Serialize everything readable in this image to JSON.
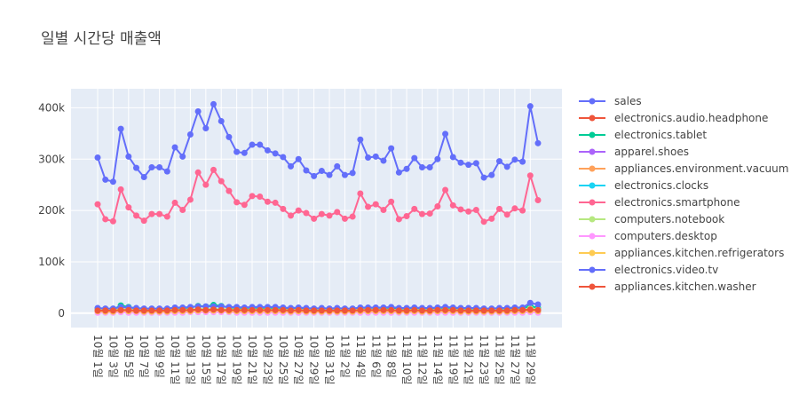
{
  "chart_data": {
    "type": "line",
    "title": "일별 시간당 매출액",
    "xlabel": "",
    "ylabel": "",
    "ylim": [
      -28000,
      437000
    ],
    "y_ticks": [
      0,
      100000,
      200000,
      300000,
      400000
    ],
    "y_tick_labels": [
      "0",
      "100k",
      "200k",
      "300k",
      "400k"
    ],
    "grid": true,
    "legend_position": "right",
    "background_color": "#e5ecf6",
    "x": [
      "10월 1일",
      "10월 2일",
      "10월 3일",
      "10월 4일",
      "10월 5일",
      "10월 6일",
      "10월 7일",
      "10월 8일",
      "10월 9일",
      "10월 10일",
      "10월 11일",
      "10월 12일",
      "10월 13일",
      "10월 14일",
      "10월 15일",
      "10월 16일",
      "10월 17일",
      "10월 18일",
      "10월 19일",
      "10월 20일",
      "10월 21일",
      "10월 22일",
      "10월 23일",
      "10월 24일",
      "10월 25일",
      "10월 26일",
      "10월 27일",
      "10월 28일",
      "10월 29일",
      "10월 30일",
      "10월 31일",
      "11월 1일",
      "11월 2일",
      "11월 3일",
      "11월 4일",
      "11월 5일",
      "11월 6일",
      "11월 7일",
      "11월 8일",
      "11월 9일",
      "11월 10일",
      "11월 11일",
      "11월 12일",
      "11월 13일",
      "11월 14일",
      "11월 15일",
      "11월 19일",
      "11월 20일",
      "11월 21일",
      "11월 22일",
      "11월 23일",
      "11월 24일",
      "11월 25일",
      "11월 26일",
      "11월 27일",
      "11월 28일",
      "11월 29일",
      "11월 30일"
    ],
    "x_tick_labels": [
      "10월 1일",
      "10월 3일",
      "10월 5일",
      "10월 7일",
      "10월 9일",
      "10월 11일",
      "10월 13일",
      "10월 15일",
      "10월 17일",
      "10월 19일",
      "10월 21일",
      "10월 23일",
      "10월 25일",
      "10월 27일",
      "10월 29일",
      "10월 31일",
      "11월 2일",
      "11월 4일",
      "11월 6일",
      "11월 8일",
      "11월 10일",
      "11월 12일",
      "11월 14일",
      "11월 19일",
      "11월 21일",
      "11월 23일",
      "11월 25일",
      "11월 27일",
      "11월 29일"
    ],
    "series": [
      {
        "name": "sales",
        "color": "#636efa",
        "values": [
          303000,
          260000,
          256000,
          359000,
          305000,
          283000,
          265000,
          284000,
          284000,
          276000,
          323000,
          305000,
          348000,
          393000,
          360000,
          407000,
          374000,
          343000,
          314000,
          312000,
          328000,
          328000,
          317000,
          311000,
          304000,
          286000,
          300000,
          278000,
          267000,
          277000,
          269000,
          286000,
          269000,
          273000,
          338000,
          303000,
          305000,
          297000,
          321000,
          274000,
          281000,
          302000,
          284000,
          284000,
          300000,
          349000,
          304000,
          293000,
          289000,
          292000,
          264000,
          269000,
          296000,
          285000,
          299000,
          295000,
          403000,
          331000
        ]
      },
      {
        "name": "electronics.audio.headphone",
        "color": "#ef553b",
        "values": [
          3000,
          3000,
          2000,
          4000,
          3000,
          3000,
          2000,
          3000,
          3000,
          3000,
          3000,
          3000,
          4000,
          4000,
          4000,
          4000,
          4000,
          4000,
          3000,
          3000,
          3000,
          3000,
          3000,
          3000,
          3000,
          3000,
          3000,
          3000,
          3000,
          3000,
          3000,
          3000,
          3000,
          3000,
          3000,
          3000,
          3000,
          3000,
          3000,
          3000,
          3000,
          3000,
          3000,
          3000,
          3000,
          3000,
          3000,
          3000,
          3000,
          3000,
          3000,
          3000,
          3000,
          3000,
          3000,
          3000,
          4000,
          3000
        ]
      },
      {
        "name": "electronics.tablet",
        "color": "#00cc96",
        "values": [
          9000,
          7000,
          7000,
          15000,
          12000,
          9000,
          7000,
          8000,
          8000,
          7000,
          9000,
          9000,
          11000,
          14000,
          13000,
          16000,
          14000,
          11000,
          10000,
          9000,
          10000,
          10000,
          10000,
          10000,
          9000,
          8000,
          9000,
          8000,
          7000,
          8000,
          8000,
          8000,
          8000,
          8000,
          10000,
          9000,
          9000,
          9000,
          10000,
          8000,
          8000,
          9000,
          8000,
          8000,
          9000,
          10000,
          9000,
          8000,
          8000,
          8000,
          7000,
          7000,
          8000,
          8000,
          9000,
          9000,
          14000,
          10000
        ]
      },
      {
        "name": "apparel.shoes",
        "color": "#ab63fa",
        "values": [
          6000,
          5000,
          5000,
          6000,
          6000,
          5000,
          5000,
          5000,
          5000,
          5000,
          6000,
          6000,
          6000,
          7000,
          6000,
          7000,
          6000,
          6000,
          6000,
          6000,
          6000,
          6000,
          6000,
          6000,
          6000,
          5000,
          6000,
          5000,
          5000,
          5000,
          5000,
          5000,
          5000,
          5000,
          6000,
          6000,
          6000,
          6000,
          6000,
          5000,
          5000,
          6000,
          5000,
          5000,
          6000,
          6000,
          6000,
          5000,
          5000,
          5000,
          5000,
          5000,
          5000,
          5000,
          6000,
          6000,
          7000,
          6000
        ]
      },
      {
        "name": "appliances.environment.vacuum",
        "color": "#ffa15a",
        "values": [
          5000,
          4000,
          4000,
          5000,
          5000,
          4000,
          4000,
          4000,
          4000,
          4000,
          5000,
          5000,
          5000,
          6000,
          5000,
          6000,
          5000,
          5000,
          5000,
          5000,
          5000,
          5000,
          5000,
          5000,
          5000,
          4000,
          5000,
          4000,
          4000,
          4000,
          4000,
          4000,
          4000,
          4000,
          5000,
          5000,
          5000,
          5000,
          5000,
          4000,
          4000,
          5000,
          4000,
          4000,
          5000,
          5000,
          5000,
          4000,
          4000,
          4000,
          4000,
          4000,
          4000,
          4000,
          5000,
          5000,
          6000,
          5000
        ]
      },
      {
        "name": "electronics.clocks",
        "color": "#19d3f3",
        "values": [
          4000,
          3000,
          3000,
          4000,
          4000,
          3000,
          3000,
          3000,
          3000,
          3000,
          4000,
          4000,
          4000,
          4000,
          4000,
          4000,
          4000,
          4000,
          4000,
          4000,
          4000,
          4000,
          4000,
          4000,
          4000,
          3000,
          4000,
          3000,
          3000,
          3000,
          3000,
          3000,
          3000,
          3000,
          4000,
          4000,
          4000,
          4000,
          4000,
          3000,
          3000,
          4000,
          3000,
          3000,
          4000,
          4000,
          4000,
          3000,
          3000,
          3000,
          3000,
          3000,
          3000,
          3000,
          4000,
          4000,
          4000,
          4000
        ]
      },
      {
        "name": "electronics.smartphone",
        "color": "#ff6692",
        "values": [
          212000,
          183000,
          179000,
          241000,
          206000,
          190000,
          180000,
          193000,
          193000,
          188000,
          215000,
          201000,
          221000,
          274000,
          250000,
          279000,
          257000,
          238000,
          216000,
          211000,
          228000,
          227000,
          217000,
          215000,
          203000,
          190000,
          200000,
          195000,
          184000,
          193000,
          190000,
          197000,
          184000,
          188000,
          233000,
          207000,
          212000,
          201000,
          217000,
          183000,
          189000,
          203000,
          193000,
          194000,
          208000,
          240000,
          210000,
          202000,
          198000,
          201000,
          178000,
          184000,
          203000,
          192000,
          204000,
          200000,
          268000,
          220000
        ]
      },
      {
        "name": "computers.notebook",
        "color": "#b6e880",
        "values": [
          7000,
          6000,
          6000,
          8000,
          7000,
          6000,
          6000,
          6000,
          6000,
          6000,
          7000,
          7000,
          7000,
          8000,
          8000,
          8000,
          8000,
          7000,
          7000,
          7000,
          7000,
          7000,
          7000,
          7000,
          7000,
          6000,
          7000,
          6000,
          6000,
          6000,
          6000,
          6000,
          6000,
          6000,
          7000,
          7000,
          7000,
          7000,
          7000,
          6000,
          6000,
          7000,
          6000,
          6000,
          7000,
          7000,
          7000,
          6000,
          6000,
          6000,
          6000,
          6000,
          6000,
          6000,
          7000,
          7000,
          9000,
          7000
        ]
      },
      {
        "name": "computers.desktop",
        "color": "#ff97ff",
        "values": [
          1000,
          1000,
          1000,
          2000,
          1000,
          1000,
          1000,
          1000,
          1000,
          1000,
          1000,
          1000,
          2000,
          2000,
          2000,
          2000,
          2000,
          2000,
          1000,
          1000,
          1000,
          1000,
          1000,
          1000,
          1000,
          1000,
          1000,
          1000,
          1000,
          1000,
          1000,
          1000,
          1000,
          1000,
          1000,
          1000,
          1000,
          1000,
          1000,
          1000,
          1000,
          1000,
          1000,
          1000,
          1000,
          1000,
          1000,
          1000,
          1000,
          1000,
          1000,
          1000,
          1000,
          1000,
          1000,
          1000,
          2000,
          1000
        ]
      },
      {
        "name": "appliances.kitchen.refrigerators",
        "color": "#fecb52",
        "values": [
          4000,
          3000,
          3000,
          5000,
          4000,
          4000,
          3000,
          3000,
          3000,
          3000,
          4000,
          4000,
          4000,
          5000,
          5000,
          5000,
          5000,
          4000,
          4000,
          4000,
          4000,
          4000,
          4000,
          4000,
          4000,
          3000,
          4000,
          3000,
          3000,
          3000,
          3000,
          3000,
          3000,
          3000,
          4000,
          4000,
          4000,
          4000,
          4000,
          3000,
          3000,
          4000,
          3000,
          3000,
          4000,
          4000,
          4000,
          3000,
          3000,
          3000,
          3000,
          3000,
          3000,
          3000,
          4000,
          4000,
          5000,
          4000
        ]
      },
      {
        "name": "electronics.video.tv",
        "color": "#636efa",
        "values": [
          10000,
          9000,
          9000,
          12000,
          11000,
          10000,
          9000,
          9000,
          9000,
          9000,
          11000,
          11000,
          12000,
          13000,
          13000,
          13000,
          13000,
          12000,
          12000,
          11000,
          12000,
          12000,
          12000,
          12000,
          11000,
          10000,
          11000,
          10000,
          9000,
          10000,
          9000,
          10000,
          9000,
          9000,
          11000,
          11000,
          11000,
          11000,
          12000,
          10000,
          10000,
          11000,
          10000,
          10000,
          11000,
          12000,
          11000,
          10000,
          10000,
          10000,
          9000,
          9000,
          10000,
          10000,
          11000,
          11000,
          20000,
          17000
        ]
      },
      {
        "name": "appliances.kitchen.washer",
        "color": "#ef553b",
        "values": [
          5000,
          5000,
          5000,
          6000,
          6000,
          5000,
          5000,
          5000,
          5000,
          5000,
          6000,
          6000,
          6000,
          7000,
          6000,
          7000,
          6000,
          6000,
          6000,
          6000,
          6000,
          6000,
          6000,
          6000,
          6000,
          5000,
          6000,
          5000,
          5000,
          5000,
          5000,
          5000,
          5000,
          5000,
          6000,
          6000,
          6000,
          6000,
          6000,
          5000,
          5000,
          6000,
          5000,
          5000,
          6000,
          6000,
          6000,
          5000,
          5000,
          5000,
          5000,
          5000,
          5000,
          5000,
          6000,
          6000,
          7000,
          6000
        ]
      }
    ]
  }
}
